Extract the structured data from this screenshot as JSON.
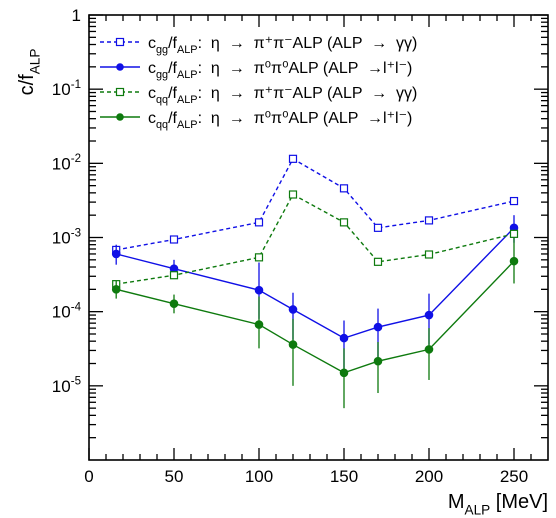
{
  "chart_data": {
    "type": "line",
    "x_axis": {
      "min": 0,
      "max": 270,
      "scale": "linear",
      "ticks": [
        0,
        50,
        100,
        150,
        200,
        250
      ],
      "tick_labels": [
        "0",
        "50",
        "100",
        "150",
        "200",
        "250"
      ],
      "label": "M_{ALP} [MeV]"
    },
    "y_axis": {
      "min": 1e-06,
      "max": 1,
      "scale": "log",
      "ticks": [
        1e-05,
        0.0001,
        0.001,
        0.01,
        0.1,
        1
      ],
      "tick_labels": [
        "10^{-5}",
        "10^{-4}",
        "10^{-3}",
        "10^{-2}",
        "10^{-1}",
        "1"
      ],
      "label": "c/f_{ALP}"
    },
    "grid": false,
    "legend_position": "top-right",
    "series": [
      {
        "name": "c_{gg}/f_{ALP}:  η  →  π⁺π⁻ALP (ALP  →  γγ)",
        "color": "#1010e6",
        "line": "dashed",
        "marker": "open-square",
        "points": [
          {
            "x": 16,
            "y": 0.00068
          },
          {
            "x": 50,
            "y": 0.00094
          },
          {
            "x": 100,
            "y": 0.0016
          },
          {
            "x": 120,
            "y": 0.0115
          },
          {
            "x": 150,
            "y": 0.0046
          },
          {
            "x": 170,
            "y": 0.00135
          },
          {
            "x": 200,
            "y": 0.0017
          },
          {
            "x": 250,
            "y": 0.0031
          }
        ]
      },
      {
        "name": "c_{gg}/f_{ALP}:  η  →  π⁰π⁰ALP (ALP  →l⁺l⁻)",
        "color": "#1010e6",
        "line": "solid",
        "marker": "filled-circle",
        "points": [
          {
            "x": 16,
            "y": 0.0006,
            "ylo": 0.00043,
            "yhi": 0.0008
          },
          {
            "x": 50,
            "y": 0.00038,
            "ylo": 0.00028,
            "yhi": 0.0005
          },
          {
            "x": 100,
            "y": 0.000195,
            "ylo": 8e-05,
            "yhi": 0.00046
          },
          {
            "x": 120,
            "y": 0.000107,
            "ylo": 4.2e-05,
            "yhi": 0.00018
          },
          {
            "x": 150,
            "y": 4.4e-05,
            "ylo": 1.5e-05,
            "yhi": 7.6e-05
          },
          {
            "x": 170,
            "y": 6.2e-05,
            "ylo": 2.4e-05,
            "yhi": 0.00011
          },
          {
            "x": 200,
            "y": 9e-05,
            "ylo": 3.6e-05,
            "yhi": 0.000175
          },
          {
            "x": 250,
            "y": 0.00135,
            "ylo": 0.00085,
            "yhi": 0.002
          }
        ]
      },
      {
        "name": "c_{qq}/f_{ALP}:  η  →  π⁺π⁻ALP (ALP  →  γγ)",
        "color": "#0e7a0e",
        "line": "dashed",
        "marker": "open-square",
        "points": [
          {
            "x": 16,
            "y": 0.000235
          },
          {
            "x": 50,
            "y": 0.00031
          },
          {
            "x": 100,
            "y": 0.00054
          },
          {
            "x": 120,
            "y": 0.0038
          },
          {
            "x": 150,
            "y": 0.0016
          },
          {
            "x": 170,
            "y": 0.00047
          },
          {
            "x": 200,
            "y": 0.00059
          },
          {
            "x": 250,
            "y": 0.00112
          }
        ]
      },
      {
        "name": "c_{qq}/f_{ALP}:  η  →  π⁰π⁰ALP (ALP  →l⁺l⁻)",
        "color": "#0e7a0e",
        "line": "solid",
        "marker": "filled-circle",
        "points": [
          {
            "x": 16,
            "y": 0.0002,
            "ylo": 0.00015,
            "yhi": 0.00026
          },
          {
            "x": 50,
            "y": 0.000128,
            "ylo": 9.5e-05,
            "yhi": 0.00017
          },
          {
            "x": 100,
            "y": 6.7e-05,
            "ylo": 3.2e-05,
            "yhi": 0.00016
          },
          {
            "x": 120,
            "y": 3.6e-05,
            "ylo": 1e-05,
            "yhi": 8e-05
          },
          {
            "x": 150,
            "y": 1.5e-05,
            "ylo": 5e-06,
            "yhi": 3.2e-05
          },
          {
            "x": 170,
            "y": 2.15e-05,
            "ylo": 8e-06,
            "yhi": 3.9e-05
          },
          {
            "x": 200,
            "y": 3.1e-05,
            "ylo": 1.2e-05,
            "yhi": 6e-05
          },
          {
            "x": 250,
            "y": 0.00048,
            "ylo": 0.00024,
            "yhi": 0.001
          }
        ]
      }
    ]
  }
}
